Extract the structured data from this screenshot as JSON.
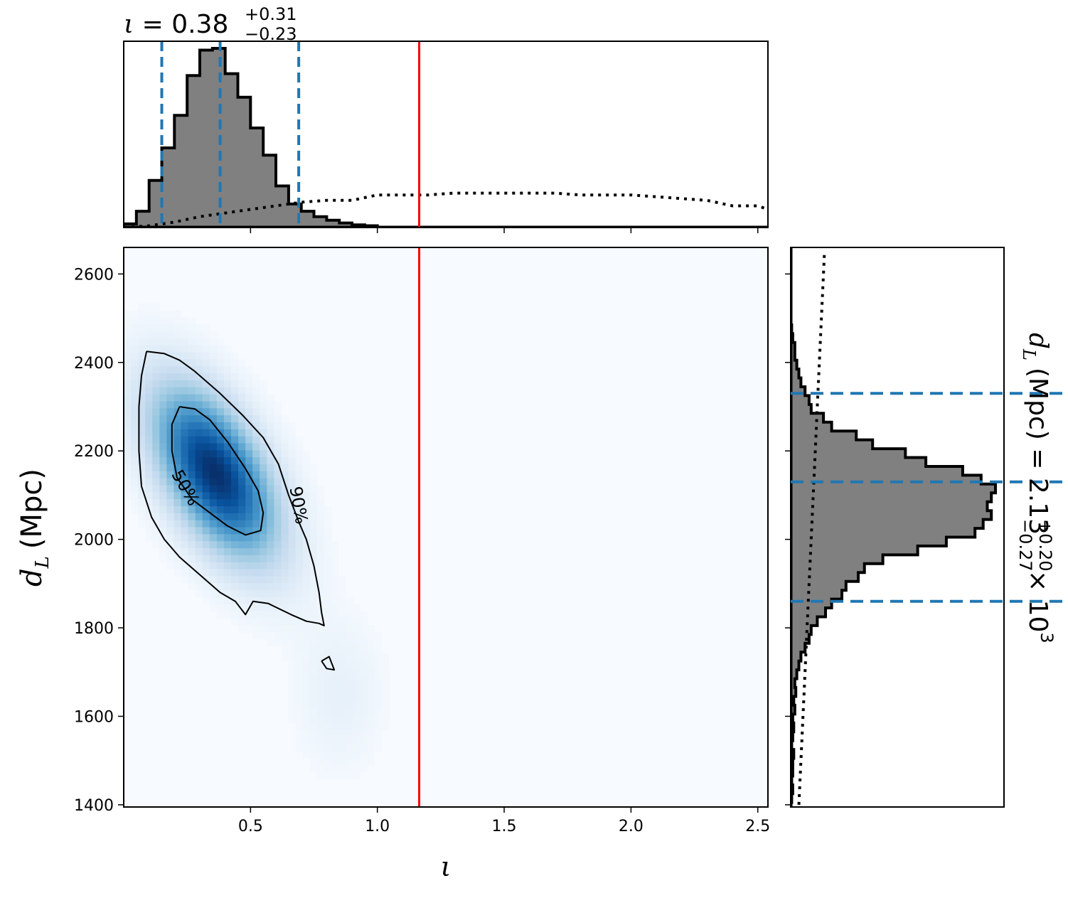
{
  "chart_data": {
    "type": "corner",
    "params": [
      {
        "symbol": "ι",
        "name": "iota",
        "median": "0.38",
        "plus": "+0.31",
        "minus": "−0.23",
        "xlim": [
          0.0,
          2.54
        ],
        "xticks": [
          "0.5",
          "1.0",
          "1.5",
          "2.0",
          "2.5"
        ],
        "xtick_values": [
          0.5,
          1.0,
          1.5,
          2.0,
          2.5
        ]
      },
      {
        "symbol": "d",
        "subscript": "L",
        "unit": "(Mpc)",
        "median": "2.13",
        "plus": "+0.20",
        "minus": "−0.27",
        "scale": "× 10",
        "scale_exp": "3",
        "ylim": [
          1395,
          2660
        ],
        "yticks": [
          "1400",
          "1600",
          "1800",
          "2000",
          "2200",
          "2400",
          "2600"
        ],
        "ytick_values": [
          1400,
          1600,
          1800,
          2000,
          2200,
          2400,
          2600
        ]
      }
    ],
    "xlabel": "ι",
    "ylabel": "d",
    "ylabel_sub": "L",
    "ylabel_unit": "(Mpc)",
    "truth_iota": 1.165,
    "quantiles_iota": [
      0.15,
      0.38,
      0.69
    ],
    "quantiles_dL": [
      1860,
      2130,
      2330
    ],
    "contour_labels": [
      "50%",
      "90%"
    ],
    "contours": [
      {
        "level": "90%",
        "points": [
          [
            0.09,
            2425
          ],
          [
            0.16,
            2420
          ],
          [
            0.22,
            2405
          ],
          [
            0.28,
            2380
          ],
          [
            0.38,
            2330
          ],
          [
            0.47,
            2280
          ],
          [
            0.55,
            2230
          ],
          [
            0.61,
            2170
          ],
          [
            0.65,
            2100
          ],
          [
            0.69,
            2040
          ],
          [
            0.72,
            2000
          ],
          [
            0.75,
            1940
          ],
          [
            0.77,
            1880
          ],
          [
            0.78,
            1835
          ],
          [
            0.79,
            1805
          ],
          [
            0.77,
            1810
          ],
          [
            0.72,
            1815
          ],
          [
            0.66,
            1830
          ],
          [
            0.57,
            1855
          ],
          [
            0.51,
            1860
          ],
          [
            0.48,
            1830
          ],
          [
            0.44,
            1860
          ],
          [
            0.38,
            1880
          ],
          [
            0.3,
            1920
          ],
          [
            0.22,
            1960
          ],
          [
            0.16,
            2000
          ],
          [
            0.11,
            2050
          ],
          [
            0.07,
            2120
          ],
          [
            0.06,
            2200
          ],
          [
            0.06,
            2300
          ],
          [
            0.07,
            2370
          ],
          [
            0.09,
            2425
          ]
        ]
      },
      {
        "level": "50%",
        "points": [
          [
            0.22,
            2300
          ],
          [
            0.28,
            2295
          ],
          [
            0.34,
            2270
          ],
          [
            0.41,
            2220
          ],
          [
            0.48,
            2160
          ],
          [
            0.53,
            2110
          ],
          [
            0.55,
            2060
          ],
          [
            0.54,
            2020
          ],
          [
            0.48,
            2010
          ],
          [
            0.41,
            2030
          ],
          [
            0.34,
            2060
          ],
          [
            0.27,
            2090
          ],
          [
            0.21,
            2140
          ],
          [
            0.19,
            2200
          ],
          [
            0.19,
            2260
          ],
          [
            0.22,
            2300
          ]
        ]
      },
      {
        "level": "island",
        "points": [
          [
            0.78,
            1725
          ],
          [
            0.81,
            1735
          ],
          [
            0.83,
            1705
          ],
          [
            0.8,
            1708
          ],
          [
            0.78,
            1725
          ]
        ]
      }
    ],
    "density_2d": {
      "mean": [
        0.36,
        2150
      ],
      "sd": [
        0.17,
        135
      ],
      "rho": -0.55
    },
    "hist_iota": {
      "bin_edges": [
        0.0,
        0.05,
        0.1,
        0.15,
        0.2,
        0.25,
        0.3,
        0.35,
        0.4,
        0.45,
        0.5,
        0.55,
        0.6,
        0.65,
        0.7,
        0.75,
        0.8,
        0.85,
        0.9,
        0.95,
        1.0,
        1.05
      ],
      "values": [
        0.02,
        0.09,
        0.26,
        0.44,
        0.62,
        0.84,
        0.98,
        0.99,
        0.85,
        0.72,
        0.55,
        0.4,
        0.23,
        0.13,
        0.09,
        0.06,
        0.04,
        0.025,
        0.015,
        0.01,
        0.0
      ]
    },
    "prior_iota": {
      "x": [
        0.0,
        0.1,
        0.2,
        0.3,
        0.4,
        0.5,
        0.6,
        0.7,
        0.8,
        0.9,
        1.0,
        1.1,
        1.2,
        1.3,
        1.4,
        1.5,
        1.6,
        1.7,
        1.8,
        1.9,
        2.0,
        2.1,
        2.2,
        2.3,
        2.4,
        2.5,
        2.54
      ],
      "values": [
        0.0,
        0.01,
        0.03,
        0.06,
        0.08,
        0.1,
        0.12,
        0.14,
        0.15,
        0.15,
        0.18,
        0.18,
        0.18,
        0.19,
        0.19,
        0.19,
        0.19,
        0.19,
        0.18,
        0.18,
        0.18,
        0.17,
        0.16,
        0.15,
        0.12,
        0.12,
        0.1
      ]
    },
    "hist_dL": {
      "bin_edges": [
        1405,
        1425,
        1445,
        1465,
        1485,
        1505,
        1525,
        1545,
        1565,
        1585,
        1605,
        1625,
        1645,
        1665,
        1685,
        1705,
        1725,
        1745,
        1765,
        1785,
        1805,
        1825,
        1845,
        1865,
        1885,
        1905,
        1925,
        1945,
        1965,
        1985,
        2005,
        2025,
        2045,
        2065,
        2085,
        2105,
        2125,
        2145,
        2165,
        2185,
        2205,
        2225,
        2245,
        2265,
        2285,
        2305,
        2325,
        2345,
        2365,
        2385,
        2405,
        2425,
        2445,
        2465,
        2485,
        2505
      ],
      "values": [
        0.005,
        0.01,
        0.005,
        0.01,
        0.01,
        0.015,
        0.005,
        0.01,
        0.015,
        0.01,
        0.02,
        0.015,
        0.025,
        0.02,
        0.03,
        0.04,
        0.05,
        0.07,
        0.09,
        0.1,
        0.13,
        0.17,
        0.2,
        0.25,
        0.27,
        0.33,
        0.36,
        0.45,
        0.62,
        0.76,
        0.9,
        0.94,
        0.98,
        0.96,
        0.98,
        1.0,
        0.93,
        0.84,
        0.66,
        0.56,
        0.4,
        0.32,
        0.2,
        0.16,
        0.1,
        0.09,
        0.07,
        0.05,
        0.04,
        0.03,
        0.02,
        0.02,
        0.01,
        0.005,
        0.0
      ]
    },
    "prior_dL": {
      "y": [
        1400,
        1500,
        1600,
        1700,
        1800,
        1900,
        2000,
        2100,
        2200,
        2300,
        2400,
        2500,
        2600,
        2650
      ],
      "values": [
        0.04,
        0.05,
        0.06,
        0.07,
        0.08,
        0.09,
        0.1,
        0.11,
        0.12,
        0.13,
        0.14,
        0.15,
        0.16,
        0.165
      ]
    },
    "colors": {
      "truth": "#ff0000",
      "quantile": "#1f77b4",
      "hist_fill": "#808080",
      "hist_edge": "#000000",
      "density": "Blues"
    }
  }
}
